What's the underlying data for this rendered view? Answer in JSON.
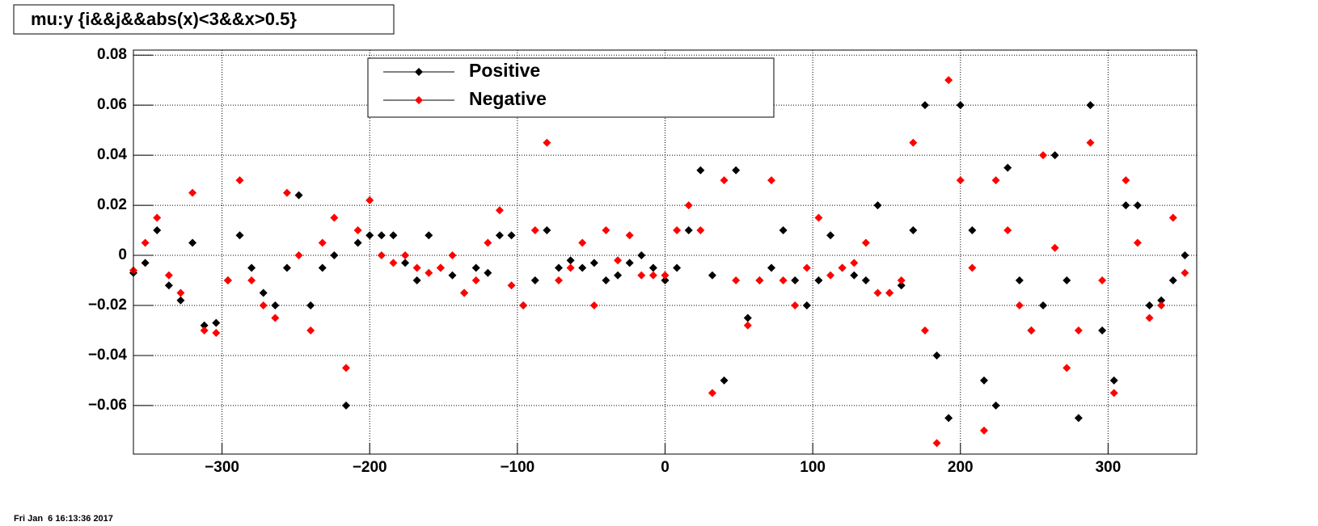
{
  "chart_data": {
    "type": "scatter",
    "title": "mu:y {i&&j&&abs(x)<3&&x>0.5}",
    "footer": "Fri Jan  6 16:13:36 2017",
    "legend": "top",
    "grid": true,
    "xlim": [
      -360,
      360
    ],
    "ylim": [
      -0.0794,
      0.082
    ],
    "xticks": [
      {
        "value": -300,
        "label": "−300"
      },
      {
        "value": -200,
        "label": "−200"
      },
      {
        "value": -100,
        "label": "−100"
      },
      0,
      100,
      200,
      300
    ],
    "yticks": [
      {
        "value": -0.06,
        "label": "−0.06"
      },
      {
        "value": -0.04,
        "label": "−0.04"
      },
      {
        "value": -0.02,
        "label": "−0.02"
      },
      0,
      0.02,
      0.04,
      0.06,
      0.08
    ],
    "x": [
      -360,
      -352,
      -344,
      -336,
      -328,
      -320,
      -312,
      -304,
      -296,
      -288,
      -280,
      -272,
      -264,
      -256,
      -248,
      -240,
      -232,
      -224,
      -216,
      -208,
      -200,
      -192,
      -184,
      -176,
      -168,
      -160,
      -152,
      -144,
      -136,
      -128,
      -120,
      -112,
      -104,
      -96,
      -88,
      -80,
      -72,
      -64,
      -56,
      -48,
      -40,
      -32,
      -24,
      -16,
      -8,
      0,
      8,
      16,
      24,
      32,
      40,
      48,
      56,
      64,
      72,
      80,
      88,
      96,
      104,
      112,
      120,
      128,
      136,
      144,
      152,
      160,
      168,
      176,
      184,
      192,
      200,
      208,
      216,
      224,
      232,
      240,
      248,
      256,
      264,
      272,
      280,
      288,
      296,
      304,
      312,
      320,
      328,
      336,
      344,
      352
    ],
    "series": [
      {
        "name": "Positive",
        "color": "#000000",
        "values": [
          -0.007,
          -0.003,
          0.01,
          -0.012,
          -0.018,
          0.005,
          -0.028,
          -0.027,
          -0.01,
          0.008,
          -0.005,
          -0.015,
          -0.02,
          -0.005,
          0.024,
          -0.02,
          -0.005,
          0.0,
          -0.06,
          0.005,
          0.008,
          0.008,
          0.008,
          -0.003,
          -0.01,
          0.008,
          -0.005,
          -0.008,
          -0.015,
          -0.005,
          -0.007,
          0.008,
          0.008,
          -0.02,
          -0.01,
          0.01,
          -0.005,
          -0.002,
          -0.005,
          -0.003,
          -0.01,
          -0.008,
          -0.003,
          0.0,
          -0.005,
          -0.01,
          -0.005,
          0.01,
          0.034,
          -0.008,
          -0.05,
          0.034,
          -0.025,
          -0.01,
          -0.005,
          0.01,
          -0.01,
          -0.02,
          -0.01,
          0.008,
          -0.005,
          -0.008,
          -0.01,
          0.02,
          -0.015,
          -0.012,
          0.01,
          0.06,
          -0.04,
          -0.065,
          0.06,
          0.01,
          -0.05,
          -0.06,
          0.035,
          -0.01,
          -0.03,
          -0.02,
          0.04,
          -0.01,
          -0.065,
          0.06,
          -0.03,
          -0.05,
          0.02,
          0.02,
          -0.02,
          -0.018,
          -0.01,
          0.0
        ]
      },
      {
        "name": "Negative",
        "color": "#ff0000",
        "values": [
          -0.006,
          0.005,
          0.015,
          -0.008,
          -0.015,
          0.025,
          -0.03,
          -0.031,
          -0.01,
          0.03,
          -0.01,
          -0.02,
          -0.025,
          0.025,
          0.0,
          -0.03,
          0.005,
          0.015,
          -0.045,
          0.01,
          0.022,
          0.0,
          -0.003,
          0.0,
          -0.005,
          -0.007,
          -0.005,
          0.0,
          -0.015,
          -0.01,
          0.005,
          0.018,
          -0.012,
          -0.02,
          0.01,
          0.045,
          -0.01,
          -0.005,
          0.005,
          -0.02,
          0.01,
          -0.002,
          0.008,
          -0.008,
          -0.008,
          -0.008,
          0.01,
          0.02,
          0.01,
          -0.055,
          0.03,
          -0.01,
          -0.028,
          -0.01,
          0.03,
          -0.01,
          -0.02,
          -0.005,
          0.015,
          -0.008,
          -0.005,
          -0.003,
          0.005,
          -0.015,
          -0.015,
          -0.01,
          0.045,
          -0.03,
          -0.075,
          0.07,
          0.03,
          -0.005,
          -0.07,
          0.03,
          0.01,
          -0.02,
          -0.03,
          0.04,
          0.003,
          -0.045,
          -0.03,
          0.045,
          -0.01,
          -0.055,
          0.03,
          0.005,
          -0.025,
          -0.02,
          0.015,
          -0.007
        ]
      }
    ]
  }
}
